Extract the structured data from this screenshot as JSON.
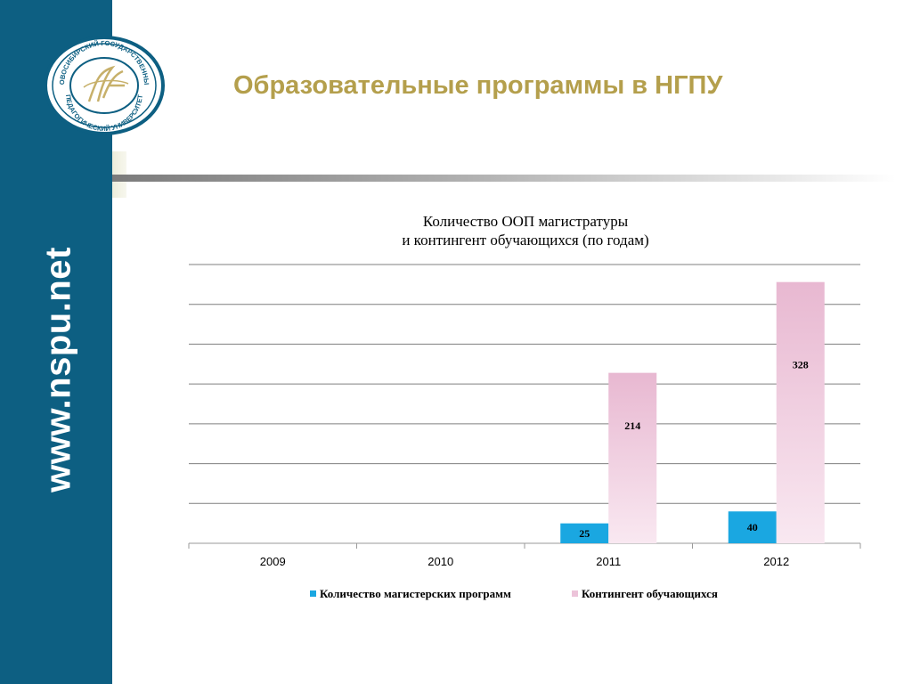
{
  "slide": {
    "title": "Образовательные программы в НГПУ",
    "sidebar_url": "www.nspu.net",
    "logo": {
      "name": "nspu-logo",
      "lettering": "НОВОСИБИРСКИЙ ГОСУДАРСТВЕННЫЙ ПЕДАГОГИЧЕСКИЙ УНИВЕРСИТЕТ"
    },
    "colors": {
      "sidebar": "#0d5f82",
      "title": "#b49f4c"
    }
  },
  "chart_data": {
    "type": "bar",
    "title_lines": [
      "Количество ООП магистратуры",
      "и контингент обучающихся  (по годам)"
    ],
    "categories": [
      "2009",
      "2010",
      "2011",
      "2012"
    ],
    "series": [
      {
        "name": "Количество магистерских программ",
        "values": [
          null,
          null,
          25,
          40
        ],
        "color": "#1aa7e1"
      },
      {
        "name": "Контингент обучающихся",
        "values": [
          null,
          null,
          214,
          328
        ],
        "color": "#ecc3d9"
      }
    ],
    "ylim": [
      0,
      350
    ],
    "grid": true,
    "legend_position": "bottom",
    "data_labels": true
  }
}
